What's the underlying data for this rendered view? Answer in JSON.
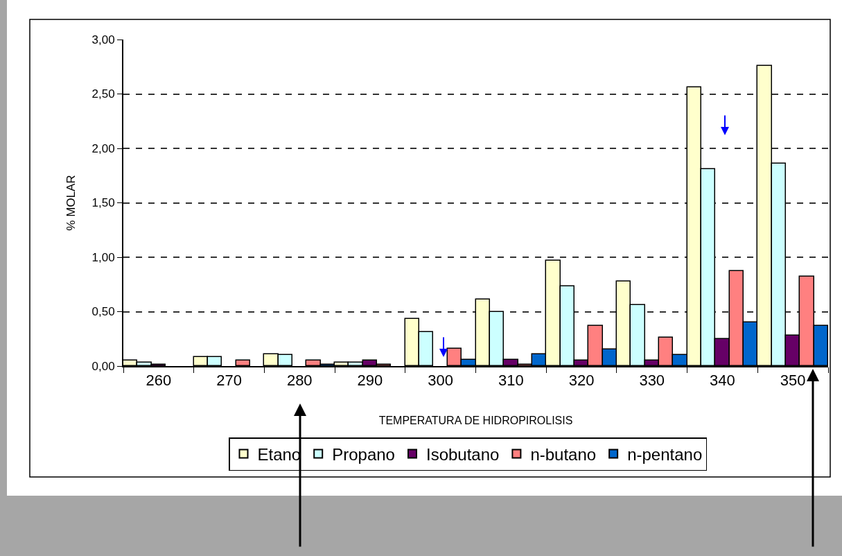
{
  "chart_data": {
    "type": "bar",
    "xlabel": "TEMPERATURA DE HIDROPIROLISIS",
    "ylabel": "% MOLAR",
    "categories": [
      "260",
      "270",
      "280",
      "290",
      "300",
      "310",
      "320",
      "330",
      "340",
      "350"
    ],
    "series": [
      {
        "name": "Etano",
        "color": "#ffffcc",
        "values": [
          0.05,
          0.08,
          0.11,
          0.03,
          0.43,
          0.61,
          0.97,
          0.78,
          2.56,
          2.76
        ]
      },
      {
        "name": "Propano",
        "color": "#ccffff",
        "values": [
          0.03,
          0.08,
          0.1,
          0.03,
          0.31,
          0.5,
          0.73,
          0.56,
          1.81,
          1.86
        ]
      },
      {
        "name": "Isobutano",
        "color": "#660066",
        "values": [
          0.01,
          null,
          null,
          0.05,
          null,
          0.06,
          0.05,
          0.05,
          0.25,
          0.28
        ]
      },
      {
        "name": "n-butano",
        "color": "#ff8080",
        "values": [
          null,
          0.05,
          0.05,
          0.01,
          0.16,
          0.01,
          0.37,
          0.26,
          0.87,
          0.82
        ]
      },
      {
        "name": "n-pentano",
        "color": "#0066cc",
        "values": [
          null,
          null,
          0.01,
          null,
          0.06,
          0.11,
          0.15,
          0.1,
          0.4,
          0.37
        ]
      }
    ],
    "ylim": [
      0,
      3
    ],
    "yticks": [
      {
        "value": 0,
        "label": "0,00"
      },
      {
        "value": 0.5,
        "label": "0,50"
      },
      {
        "value": 1,
        "label": "1,00"
      },
      {
        "value": 1.5,
        "label": "1,50"
      },
      {
        "value": 2,
        "label": "2,00"
      },
      {
        "value": 2.5,
        "label": "2,50"
      },
      {
        "value": 3,
        "label": "3,00"
      }
    ],
    "grid": "y",
    "legend": "bottom"
  }
}
